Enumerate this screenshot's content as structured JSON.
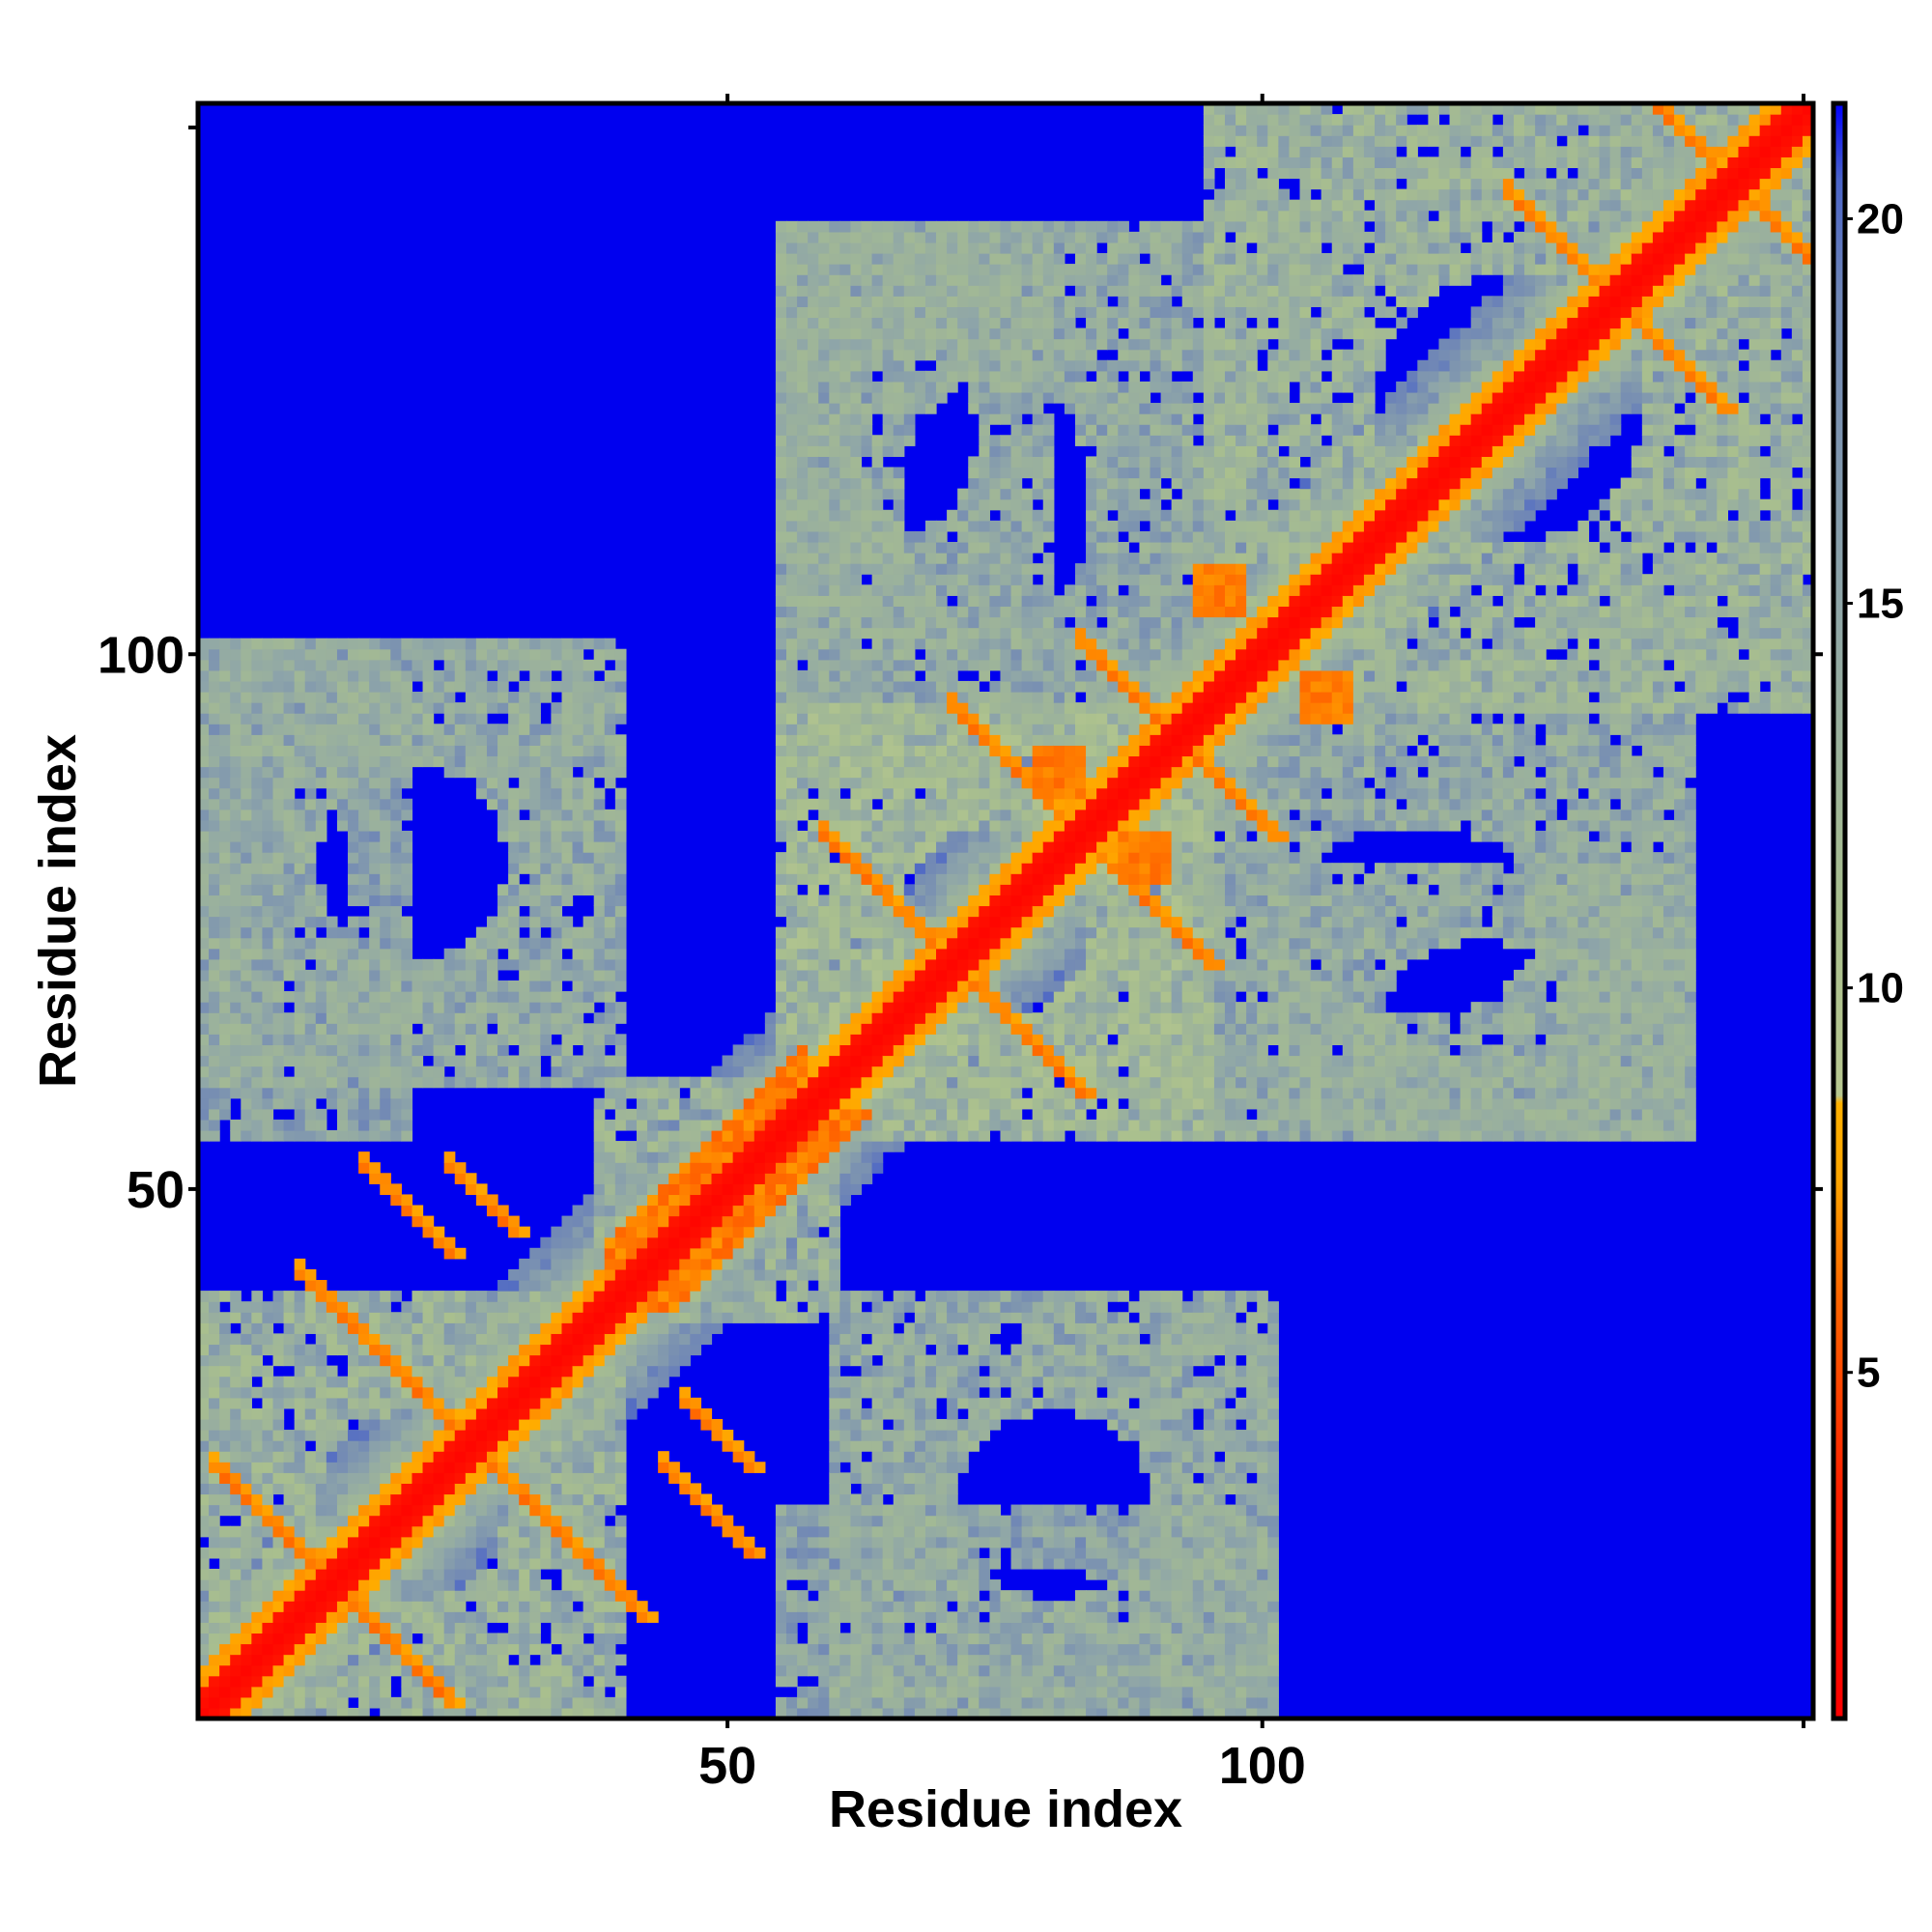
{
  "chart_data": {
    "type": "heatmap",
    "title": "",
    "xlabel": "Residue index",
    "ylabel": "Residue index",
    "xlim": [
      1,
      151
    ],
    "ylim": [
      1,
      151
    ],
    "x_ticks": [
      50,
      100
    ],
    "y_ticks": [
      50,
      100
    ],
    "colorbar": {
      "ticks": [
        5,
        10,
        15,
        20
      ],
      "range": [
        0.5,
        21.5
      ],
      "gradient": [
        {
          "value": 0.5,
          "color": "#ff0000"
        },
        {
          "value": 3.5,
          "color": "#ff2200"
        },
        {
          "value": 6.0,
          "color": "#ff6600"
        },
        {
          "value": 7.5,
          "color": "#ffa500"
        },
        {
          "value": 8.5,
          "color": "#ffb000"
        },
        {
          "value": 8.6,
          "color": "#b8c890"
        },
        {
          "value": 11.0,
          "color": "#a9bf8e"
        },
        {
          "value": 15.0,
          "color": "#8fa6a8"
        },
        {
          "value": 19.0,
          "color": "#6f86b6"
        },
        {
          "value": 20.5,
          "color": "#4a64c8"
        },
        {
          "value": 21.5,
          "color": "#0000ff"
        }
      ]
    },
    "background_value": 21,
    "background_color": "#0000ef",
    "diagonal_value": 1,
    "contact_features": [
      {
        "kind": "antiparallel",
        "i1": 2,
        "i2": 12,
        "j_center": 13,
        "value": 6.5
      },
      {
        "kind": "antiparallel",
        "i1": 10,
        "i2": 24,
        "j_center": 26,
        "value": 6.5
      },
      {
        "kind": "antiparallel",
        "i1": 16,
        "i2": 24,
        "j_center": 34,
        "value": 6.5
      },
      {
        "kind": "antiparallel",
        "i1": 24,
        "i2": 30,
        "j_center": 38,
        "value": 6.5
      },
      {
        "kind": "parallel_band",
        "i1": 39,
        "i2": 57,
        "offset": 4,
        "value": 6.5
      },
      {
        "kind": "antiparallel",
        "i1": 59,
        "i2": 69,
        "j_center": 71,
        "value": 6.5
      },
      {
        "kind": "antiparallel",
        "i1": 71,
        "i2": 81,
        "j_center": 83,
        "value": 6.5
      },
      {
        "kind": "antiparallel",
        "i1": 83,
        "i2": 90,
        "j_center": 92,
        "value": 6.5
      },
      {
        "kind": "antiparallel",
        "i1": 123,
        "i2": 131,
        "j_center": 133,
        "value": 6.5
      },
      {
        "kind": "antiparallel",
        "i1": 133,
        "i2": 142,
        "j_center": 144,
        "value": 6.5
      },
      {
        "kind": "blob",
        "i": 96,
        "j": 106,
        "r": 2,
        "value": 6.5
      },
      {
        "kind": "blob",
        "i": 81,
        "j": 89,
        "r": 2,
        "value": 6.5
      }
    ],
    "domain_blocks": [
      {
        "i1": 1,
        "i2": 40,
        "j1": 1,
        "j2": 40,
        "value": 14
      },
      {
        "i1": 1,
        "i2": 40,
        "j1": 60,
        "j2": 101,
        "value": 15
      },
      {
        "i1": 60,
        "i2": 101,
        "j1": 1,
        "j2": 40,
        "value": 15
      },
      {
        "i1": 38,
        "i2": 60,
        "j1": 38,
        "j2": 60,
        "value": 14
      },
      {
        "i1": 55,
        "i2": 95,
        "j1": 55,
        "j2": 95,
        "value": 13
      },
      {
        "i1": 55,
        "i2": 95,
        "j1": 88,
        "j2": 140,
        "value": 15
      },
      {
        "i1": 88,
        "i2": 140,
        "j1": 55,
        "j2": 95,
        "value": 15
      },
      {
        "i1": 95,
        "i2": 151,
        "j1": 95,
        "j2": 151,
        "value": 14
      },
      {
        "i1": 55,
        "i2": 101,
        "j1": 1,
        "j2": 20,
        "value": 16
      },
      {
        "i1": 1,
        "i2": 20,
        "j1": 55,
        "j2": 101,
        "value": 16
      },
      {
        "i1": 101,
        "i2": 140,
        "j1": 55,
        "j2": 80,
        "value": 15
      },
      {
        "i1": 55,
        "i2": 80,
        "j1": 101,
        "j2": 140,
        "value": 15
      }
    ]
  }
}
